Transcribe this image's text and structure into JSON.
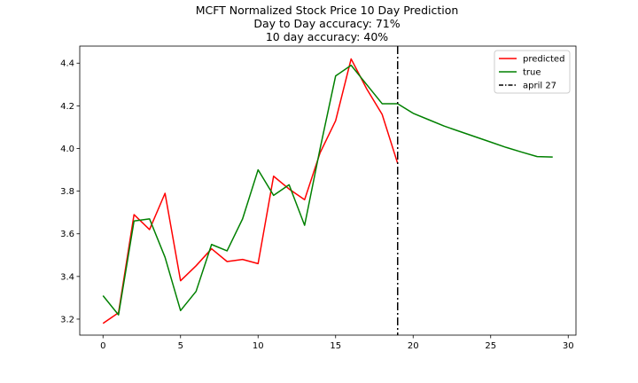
{
  "chart_data": {
    "type": "line",
    "title_lines": [
      "MCFT Normalized Stock Price 10 Day Prediction",
      "Day to Day accuracy: 71%",
      "10 day accuracy: 40%"
    ],
    "xlabel": "",
    "ylabel": "",
    "xlim": [
      -1.5,
      30.5
    ],
    "ylim": [
      3.125,
      4.48
    ],
    "x_ticks": [
      0,
      5,
      10,
      15,
      20,
      25,
      30
    ],
    "y_ticks": [
      3.2,
      3.4,
      3.6,
      3.8,
      4.0,
      4.2,
      4.4
    ],
    "y_tick_labels": [
      "3.2",
      "3.4",
      "3.6",
      "3.8",
      "4.0",
      "4.2",
      "4.4"
    ],
    "grid": false,
    "legend_position": "top-right",
    "series": [
      {
        "name": "predicted",
        "color": "#ff0000",
        "x": [
          0,
          1,
          2,
          3,
          4,
          5,
          6,
          7,
          8,
          9,
          10,
          11,
          12,
          13,
          14,
          15,
          16,
          17,
          18,
          19
        ],
        "y": [
          3.18,
          3.23,
          3.69,
          3.62,
          3.79,
          3.38,
          3.45,
          3.53,
          3.47,
          3.48,
          3.46,
          3.87,
          3.81,
          3.76,
          3.98,
          4.13,
          4.42,
          4.28,
          4.16,
          3.93
        ]
      },
      {
        "name": "true",
        "color": "#008000",
        "x": [
          0,
          1,
          2,
          3,
          4,
          5,
          6,
          7,
          8,
          9,
          10,
          11,
          12,
          13,
          14,
          15,
          16,
          17,
          18,
          19,
          20,
          21,
          22,
          23,
          24,
          25,
          26,
          27,
          28,
          29
        ],
        "y": [
          3.31,
          3.22,
          3.66,
          3.67,
          3.49,
          3.24,
          3.33,
          3.55,
          3.52,
          3.67,
          3.9,
          3.78,
          3.83,
          3.64,
          4.0,
          4.34,
          4.39,
          4.3,
          4.21,
          4.21,
          4.165,
          4.135,
          4.105,
          4.08,
          4.055,
          4.03,
          4.005,
          3.983,
          3.962,
          3.96
        ]
      }
    ],
    "vertical_line": {
      "name": "april 27",
      "x": 19,
      "color": "#000000",
      "style": "dash-dot"
    }
  }
}
